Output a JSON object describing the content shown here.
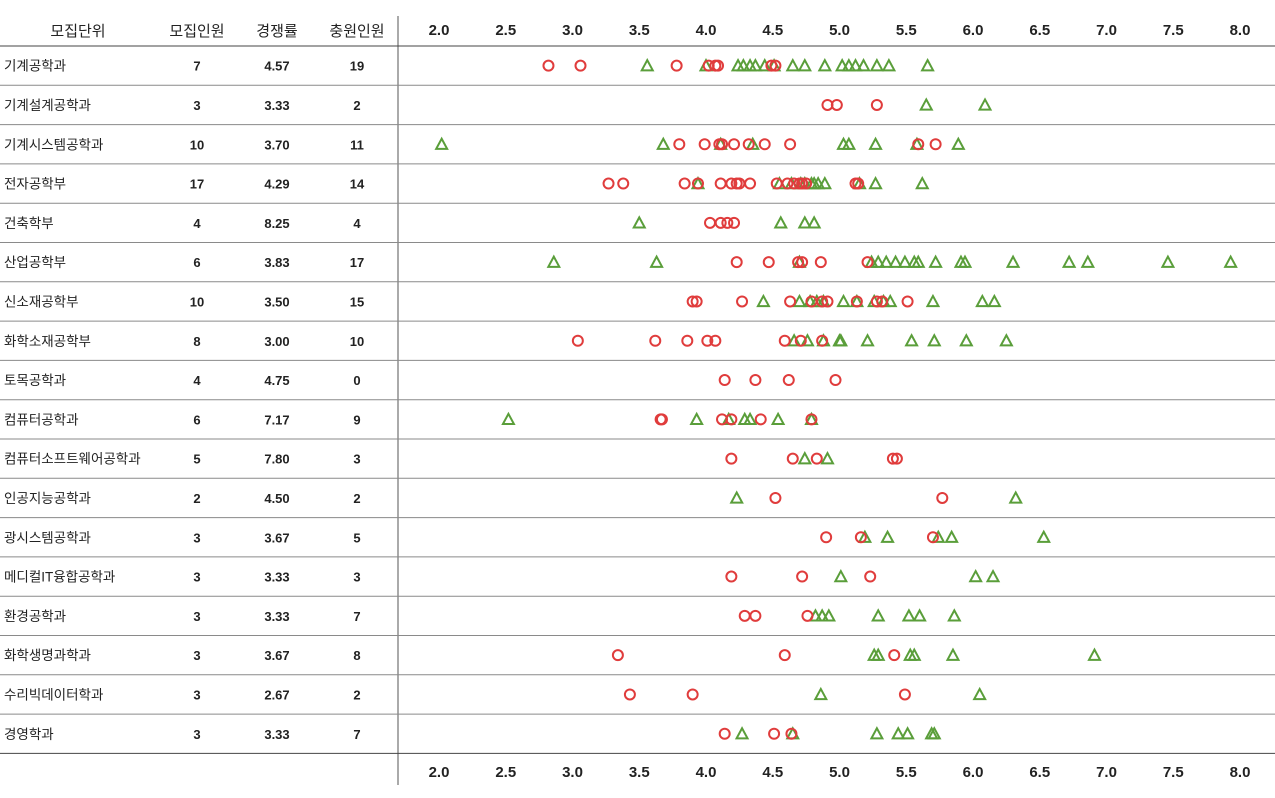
{
  "headers": {
    "unit": "모집단위",
    "quota": "모집인원",
    "ratio": "경쟁률",
    "filled": "충원인원"
  },
  "legend": {
    "circle_color": "#e03c3c",
    "triangle_color": "#5a9e3a"
  },
  "chart_data": {
    "type": "scatter",
    "xlim": [
      1.7,
      8.25
    ],
    "x_ticks": [
      "2.0",
      "2.5",
      "3.0",
      "3.5",
      "4.0",
      "4.5",
      "5.0",
      "5.5",
      "6.0",
      "6.5",
      "7.0",
      "7.5",
      "8.0"
    ],
    "grid": "horizontal row separators only",
    "series": [
      {
        "marker": "circle",
        "color": "#e03c3c"
      },
      {
        "marker": "triangle",
        "color": "#5a9e3a"
      }
    ],
    "rows": [
      {
        "unit": "기계공학과",
        "quota": "7",
        "ratio": "4.57",
        "filled": "19",
        "circles": [
          2.82,
          3.06,
          3.78,
          4.02,
          4.07,
          4.09,
          4.49,
          4.52
        ],
        "triangles": [
          3.56,
          4.0,
          4.24,
          4.28,
          4.33,
          4.37,
          4.44,
          4.51,
          4.65,
          4.74,
          4.89,
          5.02,
          5.07,
          5.12,
          5.18,
          5.28,
          5.37,
          5.66
        ]
      },
      {
        "unit": "기계설계공학과",
        "quota": "3",
        "ratio": "3.33",
        "filled": "2",
        "circles": [
          4.91,
          4.98,
          5.28
        ],
        "triangles": [
          5.65,
          6.09
        ]
      },
      {
        "unit": "기계시스템공학과",
        "quota": "10",
        "ratio": "3.70",
        "filled": "11",
        "circles": [
          3.8,
          3.99,
          4.1,
          4.12,
          4.21,
          4.32,
          4.44,
          4.63,
          5.59,
          5.72
        ],
        "triangles": [
          2.02,
          3.68,
          4.11,
          4.35,
          5.03,
          5.07,
          5.27,
          5.58,
          5.89
        ]
      },
      {
        "unit": "전자공학부",
        "quota": "17",
        "ratio": "4.29",
        "filled": "14",
        "circles": [
          3.27,
          3.38,
          3.84,
          3.94,
          4.11,
          4.19,
          4.23,
          4.25,
          4.33,
          4.53,
          4.61,
          4.66,
          4.7,
          4.72,
          4.75,
          5.12,
          5.14
        ],
        "triangles": [
          3.94,
          4.55,
          4.64,
          4.71,
          4.74,
          4.79,
          4.81,
          4.84,
          4.89,
          5.15,
          5.27,
          5.62
        ]
      },
      {
        "unit": "건축학부",
        "quota": "4",
        "ratio": "8.25",
        "filled": "4",
        "circles": [
          4.03,
          4.11,
          4.16,
          4.21
        ],
        "triangles": [
          3.5,
          4.56,
          4.74,
          4.81
        ]
      },
      {
        "unit": "산업공학부",
        "quota": "6",
        "ratio": "3.83",
        "filled": "17",
        "circles": [
          4.23,
          4.47,
          4.69,
          4.72,
          4.86,
          5.21
        ],
        "triangles": [
          2.86,
          3.63,
          4.7,
          5.24,
          5.29,
          5.35,
          5.42,
          5.49,
          5.56,
          5.59,
          5.72,
          5.91,
          5.94,
          6.3,
          6.72,
          6.86,
          7.46,
          7.93
        ]
      },
      {
        "unit": "신소재공학부",
        "quota": "10",
        "ratio": "3.50",
        "filled": "15",
        "circles": [
          3.9,
          3.93,
          4.27,
          4.63,
          4.79,
          4.87,
          4.91,
          5.13,
          5.28,
          5.32,
          5.51
        ],
        "triangles": [
          4.43,
          4.7,
          4.78,
          4.83,
          4.88,
          5.03,
          5.13,
          5.26,
          5.33,
          5.38,
          5.7,
          6.07,
          6.16
        ]
      },
      {
        "unit": "화학소재공학부",
        "quota": "8",
        "ratio": "3.00",
        "filled": "10",
        "circles": [
          3.04,
          3.62,
          3.86,
          4.01,
          4.07,
          4.59,
          4.71,
          4.87
        ],
        "triangles": [
          4.66,
          4.76,
          4.88,
          5.0,
          5.01,
          5.21,
          5.54,
          5.71,
          5.95,
          6.25
        ]
      },
      {
        "unit": "토목공학과",
        "quota": "4",
        "ratio": "4.75",
        "filled": "0",
        "circles": [
          4.14,
          4.37,
          4.62,
          4.97
        ],
        "triangles": []
      },
      {
        "unit": "컴퓨터공학과",
        "quota": "6",
        "ratio": "7.17",
        "filled": "9",
        "circles": [
          3.66,
          3.67,
          4.12,
          4.19,
          4.41,
          4.79
        ],
        "triangles": [
          2.52,
          3.93,
          4.17,
          4.29,
          4.33,
          4.54,
          4.79
        ]
      },
      {
        "unit": "컴퓨터소프트웨어공학과",
        "quota": "5",
        "ratio": "7.80",
        "filled": "3",
        "circles": [
          4.19,
          4.65,
          4.83,
          5.4,
          5.43
        ],
        "triangles": [
          4.74,
          4.91
        ]
      },
      {
        "unit": "인공지능공학과",
        "quota": "2",
        "ratio": "4.50",
        "filled": "2",
        "circles": [
          4.52,
          5.77
        ],
        "triangles": [
          4.23,
          6.32
        ]
      },
      {
        "unit": "광시스템공학과",
        "quota": "3",
        "ratio": "3.67",
        "filled": "5",
        "circles": [
          4.9,
          5.16,
          5.7
        ],
        "triangles": [
          5.19,
          5.36,
          5.74,
          5.84,
          6.53
        ]
      },
      {
        "unit": "메디컬IT융합공학과",
        "quota": "3",
        "ratio": "3.33",
        "filled": "3",
        "circles": [
          4.19,
          4.72,
          5.23
        ],
        "triangles": [
          5.01,
          6.02,
          6.15
        ]
      },
      {
        "unit": "환경공학과",
        "quota": "3",
        "ratio": "3.33",
        "filled": "7",
        "circles": [
          4.29,
          4.37,
          4.76
        ],
        "triangles": [
          4.82,
          4.87,
          4.92,
          5.29,
          5.52,
          5.6,
          5.86
        ]
      },
      {
        "unit": "화학생명과학과",
        "quota": "3",
        "ratio": "3.67",
        "filled": "8",
        "circles": [
          3.34,
          4.59,
          5.41
        ],
        "triangles": [
          5.26,
          5.29,
          5.53,
          5.56,
          5.85,
          6.91
        ]
      },
      {
        "unit": "수리빅데이터학과",
        "quota": "3",
        "ratio": "2.67",
        "filled": "2",
        "circles": [
          3.43,
          3.9,
          5.49
        ],
        "triangles": [
          4.86,
          6.05
        ]
      },
      {
        "unit": "경영학과",
        "quota": "3",
        "ratio": "3.33",
        "filled": "7",
        "circles": [
          4.14,
          4.51,
          4.64
        ],
        "triangles": [
          4.27,
          4.65,
          5.28,
          5.44,
          5.51,
          5.69,
          5.71
        ]
      }
    ]
  }
}
